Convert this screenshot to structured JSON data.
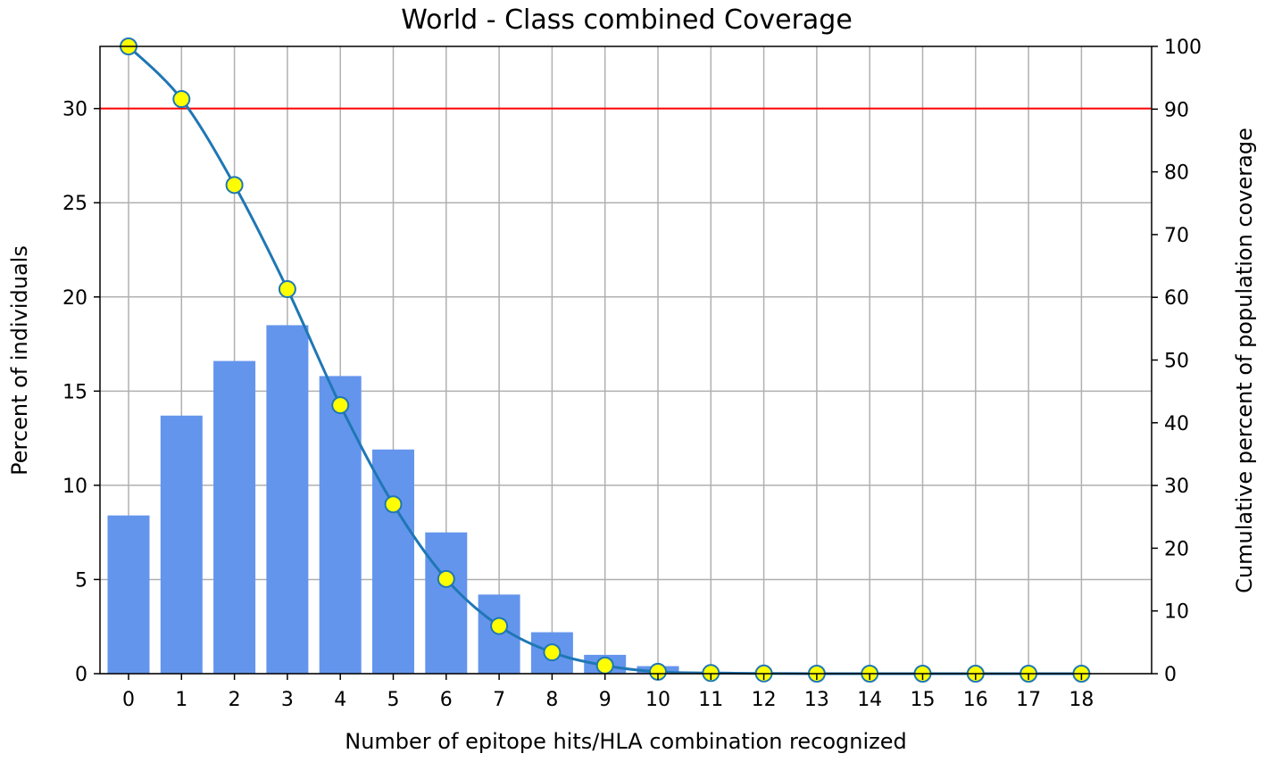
{
  "chart_data": {
    "type": "bar",
    "title": "World - Class combined Coverage",
    "xlabel": "Number of epitope hits/HLA combination recognized",
    "ylabel": "Percent of individuals",
    "y2label": "Cumulative percent of population coverage",
    "categories": [
      "0",
      "1",
      "2",
      "3",
      "4",
      "5",
      "6",
      "7",
      "8",
      "9",
      "10",
      "11",
      "12",
      "13",
      "14",
      "15",
      "16",
      "17",
      "18"
    ],
    "ylim": [
      0,
      33.3
    ],
    "y2lim": [
      0,
      100
    ],
    "yticks": [
      "0",
      "5",
      "10",
      "15",
      "20",
      "25",
      "30"
    ],
    "y2ticks": [
      "0",
      "10",
      "20",
      "30",
      "40",
      "50",
      "60",
      "70",
      "80",
      "90",
      "100"
    ],
    "grid": true,
    "threshold_line": {
      "value": 30,
      "axis": "left",
      "color": "#ff0000"
    },
    "series": [
      {
        "kind": "bar",
        "axis": "left",
        "color": "#6495ed",
        "values": [
          8.4,
          13.7,
          16.6,
          18.5,
          15.8,
          11.9,
          7.5,
          4.2,
          2.2,
          1.0,
          0.4,
          0.1,
          0.03,
          0,
          0,
          0,
          0,
          0,
          0
        ]
      },
      {
        "kind": "line",
        "axis": "right",
        "color": "#1f77b4",
        "marker_fill": "#ffff00",
        "values": [
          100,
          91.6,
          77.9,
          61.3,
          42.8,
          27.0,
          15.1,
          7.6,
          3.4,
          1.3,
          0.3,
          0.1,
          0.03,
          0,
          0,
          0,
          0,
          0,
          0
        ]
      }
    ]
  }
}
